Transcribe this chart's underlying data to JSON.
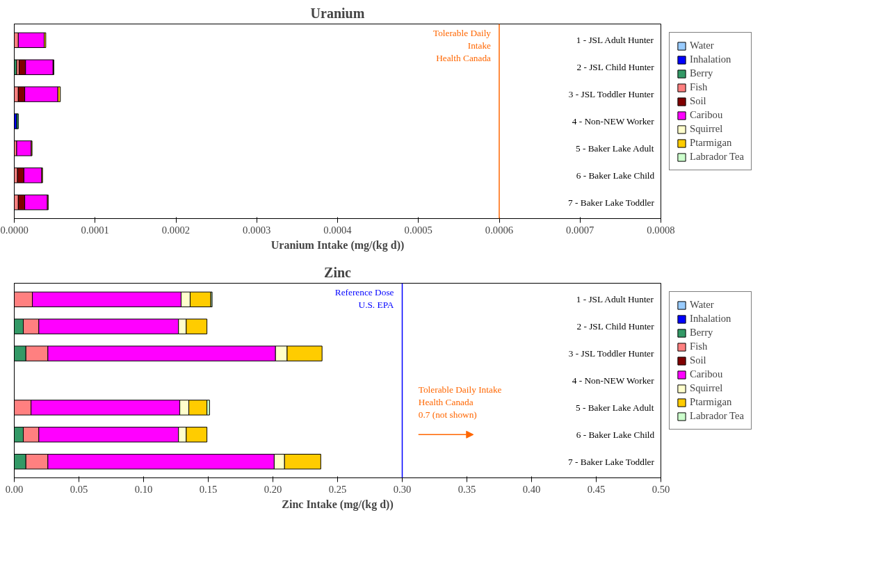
{
  "chart_data": [
    {
      "type": "bar",
      "orientation": "horizontal",
      "stacked": true,
      "title": "Uranium",
      "xlabel": "Uranium Intake (mg/(kg d))",
      "categories": [
        "1 - JSL Adult Hunter",
        "2 - JSL Child Hunter",
        "3 - JSL Toddler Hunter",
        "4 - Non-NEW Worker",
        "5 - Baker Lake Adult",
        "6 - Baker Lake Child",
        "7 - Baker Lake Toddler"
      ],
      "series": [
        {
          "name": "Water",
          "color": "#99ccff",
          "values": [
            null,
            null,
            null,
            null,
            null,
            null,
            null
          ]
        },
        {
          "name": "Inhalation",
          "color": "#0000ff",
          "values": [
            null,
            null,
            null,
            3e-06,
            null,
            null,
            null
          ]
        },
        {
          "name": "Berry",
          "color": "#339966",
          "values": [
            null,
            3e-06,
            null,
            2e-06,
            null,
            null,
            null
          ]
        },
        {
          "name": "Fish",
          "color": "#ff8080",
          "values": [
            5e-06,
            3e-06,
            5e-06,
            null,
            3e-06,
            4e-06,
            5e-06
          ]
        },
        {
          "name": "Soil",
          "color": "#800000",
          "values": [
            null,
            8e-06,
            8e-06,
            null,
            null,
            8e-06,
            8e-06
          ]
        },
        {
          "name": "Caribou",
          "color": "#ff00ff",
          "values": [
            3.2e-05,
            3.4e-05,
            4.1e-05,
            null,
            1.8e-05,
            2.2e-05,
            2.8e-05
          ]
        },
        {
          "name": "Squirrel",
          "color": "#ffffcc",
          "values": [
            null,
            null,
            null,
            null,
            null,
            null,
            null
          ]
        },
        {
          "name": "Ptarmigan",
          "color": "#ffcc00",
          "values": [
            2e-06,
            1e-06,
            3e-06,
            null,
            1e-06,
            1e-06,
            1e-06
          ]
        },
        {
          "name": "Labrador Tea",
          "color": "#ccffcc",
          "values": [
            null,
            null,
            null,
            null,
            null,
            null,
            null
          ]
        }
      ],
      "xlim": [
        0,
        0.0008
      ],
      "xticks": [
        {
          "value": 0,
          "label": "0.0000"
        },
        {
          "value": 0.0001,
          "label": "0.0001"
        },
        {
          "value": 0.0002,
          "label": "0.0002"
        },
        {
          "value": 0.0003,
          "label": "0.0003"
        },
        {
          "value": 0.0004,
          "label": "0.0004"
        },
        {
          "value": 0.0005,
          "label": "0.0005"
        },
        {
          "value": 0.0006,
          "label": "0.0006"
        },
        {
          "value": 0.0007,
          "label": "0.0007"
        },
        {
          "value": 0.0008,
          "label": "0.0008"
        }
      ],
      "ref_lines": [
        {
          "axis": "x",
          "value": 0.0006,
          "label": "Tolerable Daily\nIntake\nHealth Canada",
          "color": "#ff6600"
        }
      ],
      "grid": false,
      "legend": "right"
    },
    {
      "type": "bar",
      "orientation": "horizontal",
      "stacked": true,
      "title": "Zinc",
      "xlabel": "Zinc Intake (mg/(kg d))",
      "categories": [
        "1 - JSL Adult Hunter",
        "2 - JSL Child Hunter",
        "3 - JSL Toddler Hunter",
        "4 - Non-NEW Worker",
        "5 - Baker Lake Adult",
        "6 - Baker Lake Child",
        "7 - Baker Lake Toddler"
      ],
      "series": [
        {
          "name": "Water",
          "color": "#99ccff",
          "values": [
            null,
            null,
            null,
            null,
            null,
            null,
            null
          ]
        },
        {
          "name": "Inhalation",
          "color": "#0000ff",
          "values": [
            null,
            null,
            null,
            null,
            null,
            null,
            null
          ]
        },
        {
          "name": "Berry",
          "color": "#339966",
          "values": [
            null,
            0.007,
            0.009,
            null,
            null,
            0.007,
            0.009
          ]
        },
        {
          "name": "Fish",
          "color": "#ff8080",
          "values": [
            0.014,
            0.012,
            0.017,
            null,
            0.013,
            0.012,
            0.017
          ]
        },
        {
          "name": "Soil",
          "color": "#800000",
          "values": [
            null,
            null,
            null,
            null,
            null,
            null,
            null
          ]
        },
        {
          "name": "Caribou",
          "color": "#ff00ff",
          "values": [
            0.115,
            0.108,
            0.176,
            null,
            0.115,
            0.108,
            0.175
          ]
        },
        {
          "name": "Squirrel",
          "color": "#ffffcc",
          "values": [
            0.007,
            0.006,
            0.009,
            null,
            0.007,
            0.006,
            0.008
          ]
        },
        {
          "name": "Ptarmigan",
          "color": "#ffcc00",
          "values": [
            0.016,
            0.016,
            0.027,
            null,
            0.014,
            0.016,
            0.028
          ]
        },
        {
          "name": "Labrador Tea",
          "color": "#ccffcc",
          "values": [
            0.001,
            null,
            null,
            null,
            0.002,
            null,
            null
          ]
        }
      ],
      "xlim": [
        0,
        0.5
      ],
      "xticks": [
        {
          "value": 0,
          "label": "0.00"
        },
        {
          "value": 0.05,
          "label": "0.05"
        },
        {
          "value": 0.1,
          "label": "0.10"
        },
        {
          "value": 0.15,
          "label": "0.15"
        },
        {
          "value": 0.2,
          "label": "0.20"
        },
        {
          "value": 0.25,
          "label": "0.25"
        },
        {
          "value": 0.3,
          "label": "0.30"
        },
        {
          "value": 0.35,
          "label": "0.35"
        },
        {
          "value": 0.4,
          "label": "0.40"
        },
        {
          "value": 0.45,
          "label": "0.45"
        },
        {
          "value": 0.5,
          "label": "0.50"
        }
      ],
      "ref_lines": [
        {
          "axis": "x",
          "value": 0.3,
          "label": "Reference Dose\nU.S. EPA",
          "color": "#0000ff"
        }
      ],
      "annotations": [
        "Tolerable Daily Intake\nHealth Canada\n0.7 (not shown)"
      ],
      "grid": false,
      "legend": "right"
    }
  ]
}
